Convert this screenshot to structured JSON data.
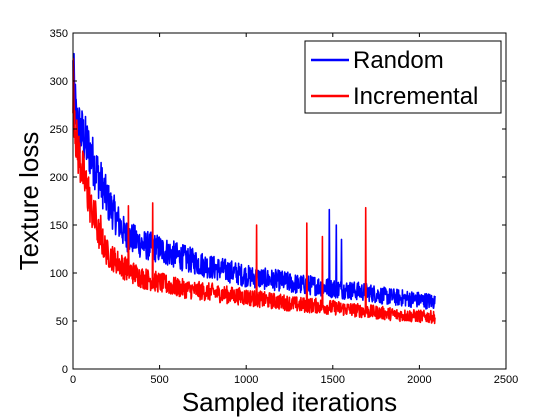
{
  "chart_data": {
    "type": "line",
    "title": "",
    "xlabel": "Sampled iterations",
    "ylabel": "Texture loss",
    "xlim": [
      0,
      2500
    ],
    "ylim": [
      0,
      350
    ],
    "xticks": [
      "0",
      "500",
      "1000",
      "1500",
      "2000",
      "2500"
    ],
    "yticks": [
      "0",
      "50",
      "100",
      "150",
      "200",
      "250",
      "300",
      "350"
    ],
    "grid": false,
    "legend_position": "top-right",
    "x_end": 2090,
    "series": [
      {
        "name": "Random",
        "color": "#0000ff",
        "x": [
          0,
          20,
          50,
          100,
          150,
          200,
          300,
          400,
          500,
          600,
          700,
          800,
          900,
          1000,
          1100,
          1200,
          1300,
          1400,
          1500,
          1600,
          1700,
          1800,
          1900,
          2000,
          2090
        ],
        "y": [
          310,
          255,
          245,
          225,
          200,
          175,
          140,
          130,
          125,
          118,
          112,
          106,
          102,
          97,
          94,
          92,
          88,
          87,
          84,
          82,
          80,
          76,
          74,
          72,
          70
        ],
        "spikes": [
          [
            1480,
            166
          ],
          [
            1520,
            150
          ],
          [
            1550,
            135
          ]
        ]
      },
      {
        "name": "Incremental",
        "color": "#ff0000",
        "x": [
          0,
          20,
          50,
          100,
          150,
          200,
          300,
          400,
          500,
          600,
          700,
          800,
          900,
          1000,
          1100,
          1200,
          1300,
          1400,
          1500,
          1600,
          1700,
          1800,
          1900,
          2000,
          2090
        ],
        "y": [
          300,
          235,
          210,
          170,
          140,
          120,
          105,
          95,
          90,
          85,
          82,
          80,
          77,
          75,
          72,
          70,
          67,
          66,
          64,
          62,
          60,
          58,
          56,
          55,
          54
        ],
        "spikes": [
          [
            90,
            200
          ],
          [
            130,
            175
          ],
          [
            160,
            160
          ],
          [
            320,
            170
          ],
          [
            460,
            173
          ],
          [
            1060,
            150
          ],
          [
            1350,
            152
          ],
          [
            1440,
            138
          ],
          [
            1690,
            168
          ]
        ]
      }
    ]
  }
}
